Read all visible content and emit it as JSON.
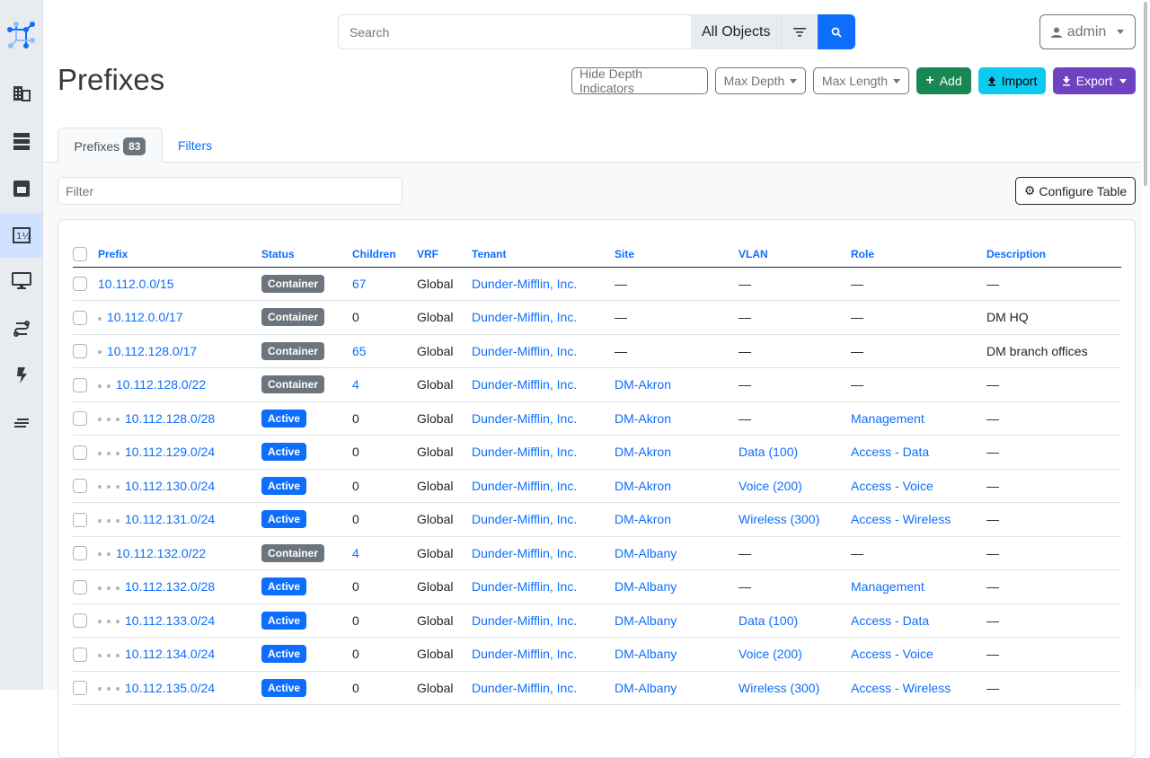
{
  "header": {
    "search_placeholder": "Search",
    "search_scope": "All Objects",
    "user": "admin"
  },
  "sidebar": {
    "items": [
      "organization-icon",
      "devices-icon",
      "connections-icon",
      "ipam-icon",
      "virtualization-icon",
      "circuits-icon",
      "power-icon",
      "provisioning-icon"
    ],
    "active": "ipam-icon"
  },
  "page": {
    "title": "Prefixes"
  },
  "actions": {
    "hide_depth": "Hide Depth Indicators",
    "max_depth": "Max Depth",
    "max_length": "Max Length",
    "add": "Add",
    "import": "Import",
    "export": "Export"
  },
  "tabs": {
    "prefixes": "Prefixes",
    "count": "83",
    "filters": "Filters"
  },
  "toolbar": {
    "filter_placeholder": "Filter",
    "configure": "Configure Table"
  },
  "colors": {
    "container": "#6c757d",
    "active": "#0d6efd",
    "add": "#198754",
    "import": "#0dcaf0",
    "export": "#6f42c1"
  },
  "table": {
    "columns": [
      "Prefix",
      "Status",
      "Children",
      "VRF",
      "Tenant",
      "Site",
      "VLAN",
      "Role",
      "Description"
    ],
    "rows": [
      {
        "depth": 0,
        "prefix": "10.112.0.0/15",
        "status": "Container",
        "children": "67",
        "vrf": "Global",
        "tenant": "Dunder-Mifflin, Inc.",
        "site": "—",
        "vlan": "—",
        "role": "—",
        "description": "—"
      },
      {
        "depth": 1,
        "prefix": "10.112.0.0/17",
        "status": "Container",
        "children": "0",
        "vrf": "Global",
        "tenant": "Dunder-Mifflin, Inc.",
        "site": "—",
        "vlan": "—",
        "role": "—",
        "description": "DM HQ"
      },
      {
        "depth": 1,
        "prefix": "10.112.128.0/17",
        "status": "Container",
        "children": "65",
        "vrf": "Global",
        "tenant": "Dunder-Mifflin, Inc.",
        "site": "—",
        "vlan": "—",
        "role": "—",
        "description": "DM branch offices"
      },
      {
        "depth": 2,
        "prefix": "10.112.128.0/22",
        "status": "Container",
        "children": "4",
        "vrf": "Global",
        "tenant": "Dunder-Mifflin, Inc.",
        "site": "DM-Akron",
        "vlan": "—",
        "role": "—",
        "description": "—"
      },
      {
        "depth": 3,
        "prefix": "10.112.128.0/28",
        "status": "Active",
        "children": "0",
        "vrf": "Global",
        "tenant": "Dunder-Mifflin, Inc.",
        "site": "DM-Akron",
        "vlan": "—",
        "role": "Management",
        "description": "—"
      },
      {
        "depth": 3,
        "prefix": "10.112.129.0/24",
        "status": "Active",
        "children": "0",
        "vrf": "Global",
        "tenant": "Dunder-Mifflin, Inc.",
        "site": "DM-Akron",
        "vlan": "Data (100)",
        "role": "Access - Data",
        "description": "—"
      },
      {
        "depth": 3,
        "prefix": "10.112.130.0/24",
        "status": "Active",
        "children": "0",
        "vrf": "Global",
        "tenant": "Dunder-Mifflin, Inc.",
        "site": "DM-Akron",
        "vlan": "Voice (200)",
        "role": "Access - Voice",
        "description": "—"
      },
      {
        "depth": 3,
        "prefix": "10.112.131.0/24",
        "status": "Active",
        "children": "0",
        "vrf": "Global",
        "tenant": "Dunder-Mifflin, Inc.",
        "site": "DM-Akron",
        "vlan": "Wireless (300)",
        "role": "Access - Wireless",
        "description": "—"
      },
      {
        "depth": 2,
        "prefix": "10.112.132.0/22",
        "status": "Container",
        "children": "4",
        "vrf": "Global",
        "tenant": "Dunder-Mifflin, Inc.",
        "site": "DM-Albany",
        "vlan": "—",
        "role": "—",
        "description": "—"
      },
      {
        "depth": 3,
        "prefix": "10.112.132.0/28",
        "status": "Active",
        "children": "0",
        "vrf": "Global",
        "tenant": "Dunder-Mifflin, Inc.",
        "site": "DM-Albany",
        "vlan": "—",
        "role": "Management",
        "description": "—"
      },
      {
        "depth": 3,
        "prefix": "10.112.133.0/24",
        "status": "Active",
        "children": "0",
        "vrf": "Global",
        "tenant": "Dunder-Mifflin, Inc.",
        "site": "DM-Albany",
        "vlan": "Data (100)",
        "role": "Access - Data",
        "description": "—"
      },
      {
        "depth": 3,
        "prefix": "10.112.134.0/24",
        "status": "Active",
        "children": "0",
        "vrf": "Global",
        "tenant": "Dunder-Mifflin, Inc.",
        "site": "DM-Albany",
        "vlan": "Voice (200)",
        "role": "Access - Voice",
        "description": "—"
      },
      {
        "depth": 3,
        "prefix": "10.112.135.0/24",
        "status": "Active",
        "children": "0",
        "vrf": "Global",
        "tenant": "Dunder-Mifflin, Inc.",
        "site": "DM-Albany",
        "vlan": "Wireless (300)",
        "role": "Access - Wireless",
        "description": "—"
      }
    ]
  }
}
